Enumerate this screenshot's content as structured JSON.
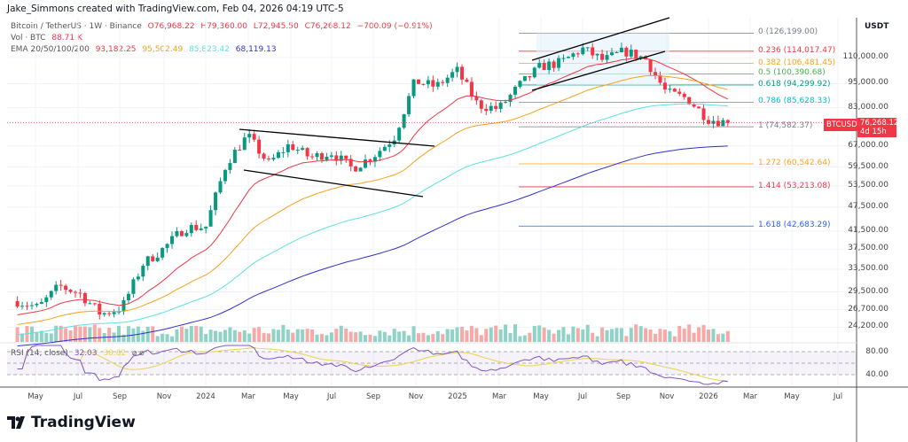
{
  "credit": "Jake_Simmons created with TradingView.com, Feb 04, 2026 04:19 UTC-5",
  "symbol": {
    "name": "Bitcoin / TetherUS · 1W · Binance",
    "o": "O76,968.22",
    "h": "H79,360.00",
    "l": "L72,945.50",
    "c": "C76,268.12",
    "chg": "−700.09 (−0.91%)"
  },
  "volume": {
    "label": "Vol · BTC",
    "value": "88.71 K"
  },
  "ema": {
    "label": "EMA 20/50/100/200",
    "values": [
      "93,182.25",
      "95,502.49",
      "85,823.42",
      "68,119.13"
    ],
    "colors": [
      "#f23645",
      "#f7a21b",
      "#5ce1e6",
      "#3030d0"
    ]
  },
  "rsi": {
    "label": "RSI (14, close)",
    "value": "32.03",
    "ma": "38.82",
    "ticks": [
      "80.00",
      "40.00"
    ]
  },
  "price_axis": {
    "unit": "USDT",
    "ticks": [
      "110,000.00",
      "95,000.00",
      "83,000.00",
      "67,000.00",
      "59,500.00",
      "53,500.00",
      "47,500.00",
      "41,500.00",
      "37,500.00",
      "33,500.00",
      "29,500.00",
      "26,700.00",
      "24,200.00"
    ]
  },
  "last_price": {
    "symbol": "BTCUSDT",
    "price": "76,268.12",
    "countdown": "4d 15h",
    "color": "#f23645"
  },
  "time_axis": [
    "May",
    "Jul",
    "Sep",
    "Nov",
    "2024",
    "Mar",
    "May",
    "Jul",
    "Sep",
    "Nov",
    "2025",
    "Mar",
    "May",
    "Jul",
    "Sep",
    "Nov",
    "2026",
    "Mar",
    "May",
    "Jul"
  ],
  "fib": [
    {
      "label": "0 (126,199.00)",
      "price": 126199,
      "color": "#787b86"
    },
    {
      "label": "0.236 (114,017.47)",
      "price": 114017.47,
      "color": "#f23645"
    },
    {
      "label": "0.382 (106,481.45)",
      "price": 106481.45,
      "color": "#f7a21b"
    },
    {
      "label": "0.5 (100,390.68)",
      "price": 100390.68,
      "color": "#4caf50"
    },
    {
      "label": "0.618 (94,299.92)",
      "price": 94299.92,
      "color": "#089981"
    },
    {
      "label": "0.786 (85,628.33)",
      "price": 85628.33,
      "color": "#00bcd4"
    },
    {
      "label": "1 (74,582.37)",
      "price": 74582.37,
      "color": "#787b86"
    },
    {
      "label": "1.272 (60,542.64)",
      "price": 60542.64,
      "color": "#f7a21b"
    },
    {
      "label": "1.414 (53,213.08)",
      "price": 53213.08,
      "color": "#f23645"
    },
    {
      "label": "1.618 (42,683.29)",
      "price": 42683.29,
      "color": "#2962ff"
    }
  ],
  "logo": "TradingView",
  "chart_data": {
    "type": "candlestick",
    "title": "Bitcoin / TetherUS · 1W · Binance",
    "scale": "log",
    "ylim": [
      23000,
      135000
    ],
    "grid": true,
    "monthly_close": {
      "dates": [
        "2023-04",
        "2023-05",
        "2023-06",
        "2023-07",
        "2023-08",
        "2023-09",
        "2023-10",
        "2023-11",
        "2023-12",
        "2024-01",
        "2024-02",
        "2024-03",
        "2024-04",
        "2024-05",
        "2024-06",
        "2024-07",
        "2024-08",
        "2024-09",
        "2024-10",
        "2024-11",
        "2024-12",
        "2025-01",
        "2025-02",
        "2025-03",
        "2025-04",
        "2025-05",
        "2025-06",
        "2025-07",
        "2025-08",
        "2025-09",
        "2025-10",
        "2025-11",
        "2025-12",
        "2026-01",
        "2026-02"
      ],
      "values": [
        28000,
        27000,
        30500,
        29200,
        26000,
        27000,
        34500,
        37700,
        42300,
        42500,
        61000,
        71000,
        60600,
        67500,
        62700,
        64600,
        59000,
        63300,
        70200,
        96400,
        93400,
        102400,
        84300,
        82500,
        94200,
        104600,
        107100,
        115700,
        108200,
        114000,
        109500,
        90400,
        87500,
        78000,
        76268
      ]
    }
  }
}
